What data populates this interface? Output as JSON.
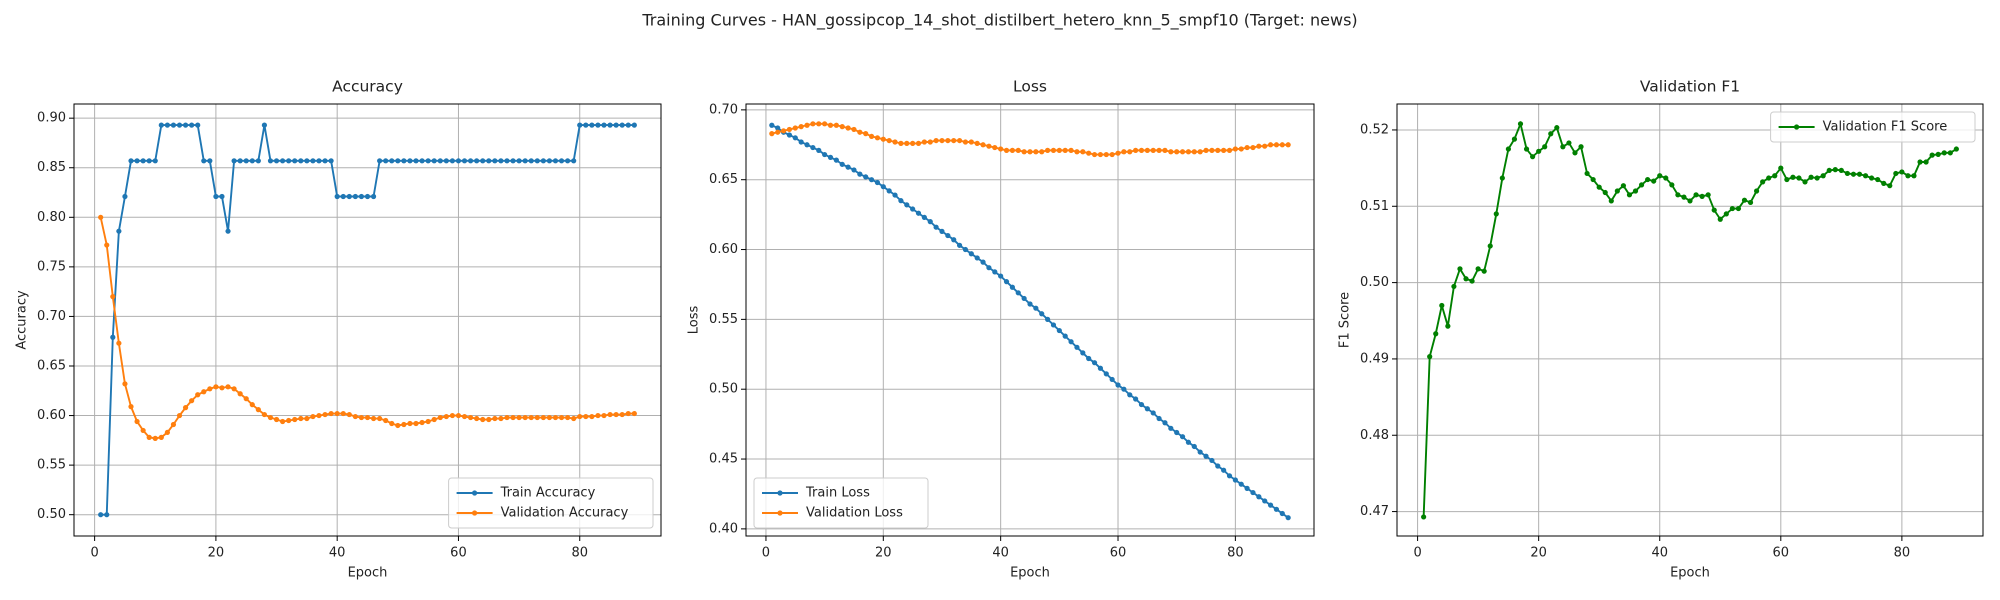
{
  "title": "Training Curves - HAN_gossipcop_14_shot_distilbert_hetero_knn_5_smpf10 (Target: news)",
  "chart_data": [
    {
      "type": "line",
      "title": "Accuracy",
      "x_label": "Epoch",
      "y_label": "Accuracy",
      "xlim": [
        -3.4,
        93.4
      ],
      "xticks": [
        0,
        20,
        40,
        60,
        80
      ],
      "ylim": [
        0.4785,
        0.9143
      ],
      "yticks": [
        {
          "value": 0.5,
          "label": "0.50"
        },
        0.55,
        {
          "value": 0.6,
          "label": "0.60"
        },
        0.65,
        {
          "value": 0.7,
          "label": "0.70"
        },
        0.75,
        {
          "value": 0.8,
          "label": "0.80"
        },
        0.85,
        {
          "value": 0.9,
          "label": "0.90"
        }
      ],
      "grid": true,
      "legend": "lower right",
      "x": [
        1,
        2,
        3,
        4,
        5,
        6,
        7,
        8,
        9,
        10,
        11,
        12,
        13,
        14,
        15,
        16,
        17,
        18,
        19,
        20,
        21,
        22,
        23,
        24,
        25,
        26,
        27,
        28,
        29,
        30,
        31,
        32,
        33,
        34,
        35,
        36,
        37,
        38,
        39,
        40,
        41,
        42,
        43,
        44,
        45,
        46,
        47,
        48,
        49,
        50,
        51,
        52,
        53,
        54,
        55,
        56,
        57,
        58,
        59,
        60,
        61,
        62,
        63,
        64,
        65,
        66,
        67,
        68,
        69,
        70,
        71,
        72,
        73,
        74,
        75,
        76,
        77,
        78,
        79,
        80,
        81,
        82,
        83,
        84,
        85,
        86,
        87,
        88,
        89
      ],
      "series": [
        {
          "name": "Train Accuracy",
          "color": "#1f77b4",
          "values": [
            0.5,
            0.5,
            0.679,
            0.786,
            0.821,
            0.857,
            0.857,
            0.857,
            0.857,
            0.857,
            0.893,
            0.893,
            0.893,
            0.893,
            0.893,
            0.893,
            0.893,
            0.857,
            0.857,
            0.821,
            0.821,
            0.786,
            0.857,
            0.857,
            0.857,
            0.857,
            0.857,
            0.893,
            0.857,
            0.857,
            0.857,
            0.857,
            0.857,
            0.857,
            0.857,
            0.857,
            0.857,
            0.857,
            0.857,
            0.821,
            0.821,
            0.821,
            0.821,
            0.821,
            0.821,
            0.821,
            0.857,
            0.857,
            0.857,
            0.857,
            0.857,
            0.857,
            0.857,
            0.857,
            0.857,
            0.857,
            0.857,
            0.857,
            0.857,
            0.857,
            0.857,
            0.857,
            0.857,
            0.857,
            0.857,
            0.857,
            0.857,
            0.857,
            0.857,
            0.857,
            0.857,
            0.857,
            0.857,
            0.857,
            0.857,
            0.857,
            0.857,
            0.857,
            0.857,
            0.893,
            0.893,
            0.893,
            0.893,
            0.893,
            0.893,
            0.893,
            0.893,
            0.893,
            0.893
          ]
        },
        {
          "name": "Validation Accuracy",
          "color": "#ff7f0e",
          "values": [
            0.8,
            0.772,
            0.72,
            0.673,
            0.632,
            0.609,
            0.594,
            0.585,
            0.578,
            0.577,
            0.578,
            0.583,
            0.591,
            0.6,
            0.608,
            0.615,
            0.621,
            0.624,
            0.627,
            0.629,
            0.628,
            0.629,
            0.627,
            0.622,
            0.617,
            0.611,
            0.606,
            0.601,
            0.598,
            0.596,
            0.594,
            0.595,
            0.596,
            0.597,
            0.597,
            0.599,
            0.6,
            0.601,
            0.602,
            0.602,
            0.602,
            0.601,
            0.599,
            0.598,
            0.598,
            0.597,
            0.597,
            0.595,
            0.592,
            0.59,
            0.591,
            0.592,
            0.592,
            0.593,
            0.594,
            0.596,
            0.598,
            0.599,
            0.6,
            0.6,
            0.599,
            0.598,
            0.597,
            0.596,
            0.596,
            0.597,
            0.597,
            0.598,
            0.598,
            0.598,
            0.598,
            0.598,
            0.598,
            0.598,
            0.598,
            0.598,
            0.598,
            0.598,
            0.597,
            0.599,
            0.599,
            0.599,
            0.6,
            0.6,
            0.601,
            0.601,
            0.601,
            0.602,
            0.602
          ]
        }
      ]
    },
    {
      "type": "line",
      "title": "Loss",
      "x_label": "Epoch",
      "y_label": "Loss",
      "xlim": [
        -3.4,
        93.4
      ],
      "xticks": [
        0,
        20,
        40,
        60,
        80
      ],
      "ylim": [
        0.3949,
        0.7042
      ],
      "yticks": [
        {
          "value": 0.4,
          "label": "0.40"
        },
        0.45,
        {
          "value": 0.5,
          "label": "0.50"
        },
        0.55,
        {
          "value": 0.6,
          "label": "0.60"
        },
        0.65,
        {
          "value": 0.7,
          "label": "0.70"
        }
      ],
      "grid": true,
      "legend": "lower left",
      "x": [
        1,
        2,
        3,
        4,
        5,
        6,
        7,
        8,
        9,
        10,
        11,
        12,
        13,
        14,
        15,
        16,
        17,
        18,
        19,
        20,
        21,
        22,
        23,
        24,
        25,
        26,
        27,
        28,
        29,
        30,
        31,
        32,
        33,
        34,
        35,
        36,
        37,
        38,
        39,
        40,
        41,
        42,
        43,
        44,
        45,
        46,
        47,
        48,
        49,
        50,
        51,
        52,
        53,
        54,
        55,
        56,
        57,
        58,
        59,
        60,
        61,
        62,
        63,
        64,
        65,
        66,
        67,
        68,
        69,
        70,
        71,
        72,
        73,
        74,
        75,
        76,
        77,
        78,
        79,
        80,
        81,
        82,
        83,
        84,
        85,
        86,
        87,
        88,
        89
      ],
      "series": [
        {
          "name": "Train Loss",
          "color": "#1f77b4",
          "values": [
            0.689,
            0.687,
            0.684,
            0.682,
            0.68,
            0.677,
            0.675,
            0.673,
            0.671,
            0.668,
            0.666,
            0.664,
            0.661,
            0.659,
            0.657,
            0.654,
            0.652,
            0.65,
            0.648,
            0.645,
            0.642,
            0.639,
            0.635,
            0.632,
            0.629,
            0.626,
            0.623,
            0.62,
            0.616,
            0.613,
            0.61,
            0.607,
            0.603,
            0.6,
            0.597,
            0.594,
            0.591,
            0.587,
            0.584,
            0.581,
            0.577,
            0.573,
            0.569,
            0.565,
            0.561,
            0.558,
            0.554,
            0.55,
            0.546,
            0.542,
            0.538,
            0.534,
            0.53,
            0.526,
            0.522,
            0.519,
            0.515,
            0.511,
            0.507,
            0.503,
            0.5,
            0.496,
            0.493,
            0.489,
            0.486,
            0.483,
            0.479,
            0.476,
            0.472,
            0.469,
            0.466,
            0.462,
            0.459,
            0.455,
            0.452,
            0.449,
            0.445,
            0.442,
            0.438,
            0.435,
            0.432,
            0.429,
            0.426,
            0.423,
            0.42,
            0.417,
            0.414,
            0.411,
            0.408
          ]
        },
        {
          "name": "Validation Loss",
          "color": "#ff7f0e",
          "values": [
            0.683,
            0.684,
            0.685,
            0.686,
            0.687,
            0.688,
            0.689,
            0.69,
            0.69,
            0.69,
            0.689,
            0.689,
            0.688,
            0.687,
            0.686,
            0.684,
            0.683,
            0.681,
            0.68,
            0.679,
            0.678,
            0.677,
            0.676,
            0.676,
            0.676,
            0.676,
            0.677,
            0.677,
            0.678,
            0.678,
            0.678,
            0.678,
            0.678,
            0.677,
            0.677,
            0.676,
            0.675,
            0.674,
            0.673,
            0.672,
            0.671,
            0.671,
            0.671,
            0.67,
            0.67,
            0.67,
            0.67,
            0.671,
            0.671,
            0.671,
            0.671,
            0.671,
            0.67,
            0.67,
            0.669,
            0.668,
            0.668,
            0.668,
            0.668,
            0.669,
            0.67,
            0.67,
            0.671,
            0.671,
            0.671,
            0.671,
            0.671,
            0.671,
            0.67,
            0.67,
            0.67,
            0.67,
            0.67,
            0.67,
            0.671,
            0.671,
            0.671,
            0.671,
            0.671,
            0.672,
            0.672,
            0.673,
            0.673,
            0.674,
            0.674,
            0.675,
            0.675,
            0.675,
            0.675
          ]
        }
      ]
    },
    {
      "type": "line",
      "title": "Validation F1",
      "x_label": "Epoch",
      "y_label": "F1 Score",
      "xlim": [
        -3.4,
        93.4
      ],
      "xticks": [
        0,
        20,
        40,
        60,
        80
      ],
      "ylim": [
        0.4668,
        0.5234
      ],
      "yticks": [
        0.47,
        0.48,
        0.49,
        {
          "value": 0.5,
          "label": "0.50"
        },
        0.51,
        0.52
      ],
      "grid": true,
      "legend": "upper right",
      "x": [
        1,
        2,
        3,
        4,
        5,
        6,
        7,
        8,
        9,
        10,
        11,
        12,
        13,
        14,
        15,
        16,
        17,
        18,
        19,
        20,
        21,
        22,
        23,
        24,
        25,
        26,
        27,
        28,
        29,
        30,
        31,
        32,
        33,
        34,
        35,
        36,
        37,
        38,
        39,
        40,
        41,
        42,
        43,
        44,
        45,
        46,
        47,
        48,
        49,
        50,
        51,
        52,
        53,
        54,
        55,
        56,
        57,
        58,
        59,
        60,
        61,
        62,
        63,
        64,
        65,
        66,
        67,
        68,
        69,
        70,
        71,
        72,
        73,
        74,
        75,
        76,
        77,
        78,
        79,
        80,
        81,
        82,
        83,
        84,
        85,
        86,
        87,
        88,
        89
      ],
      "series": [
        {
          "name": "Validation F1 Score",
          "color": "#008000",
          "values": [
            0.4693,
            0.4903,
            0.4933,
            0.497,
            0.4943,
            0.4995,
            0.5018,
            0.5005,
            0.5002,
            0.5018,
            0.5015,
            0.5048,
            0.509,
            0.5137,
            0.5175,
            0.5188,
            0.5208,
            0.5175,
            0.5165,
            0.5172,
            0.5178,
            0.5195,
            0.5203,
            0.5178,
            0.5183,
            0.517,
            0.5178,
            0.5143,
            0.5135,
            0.5125,
            0.5118,
            0.5107,
            0.512,
            0.5127,
            0.5115,
            0.512,
            0.5128,
            0.5135,
            0.5133,
            0.514,
            0.5137,
            0.5128,
            0.5115,
            0.5112,
            0.5107,
            0.5115,
            0.5113,
            0.5115,
            0.5095,
            0.5083,
            0.509,
            0.5097,
            0.5097,
            0.5108,
            0.5105,
            0.512,
            0.5132,
            0.5137,
            0.514,
            0.515,
            0.5135,
            0.5138,
            0.5137,
            0.5132,
            0.5138,
            0.5137,
            0.514,
            0.5147,
            0.5148,
            0.5147,
            0.5143,
            0.5142,
            0.5142,
            0.514,
            0.5137,
            0.5135,
            0.513,
            0.5127,
            0.5143,
            0.5145,
            0.514,
            0.514,
            0.5158,
            0.5158,
            0.5167,
            0.5168,
            0.517,
            0.517,
            0.5175
          ]
        }
      ]
    }
  ]
}
